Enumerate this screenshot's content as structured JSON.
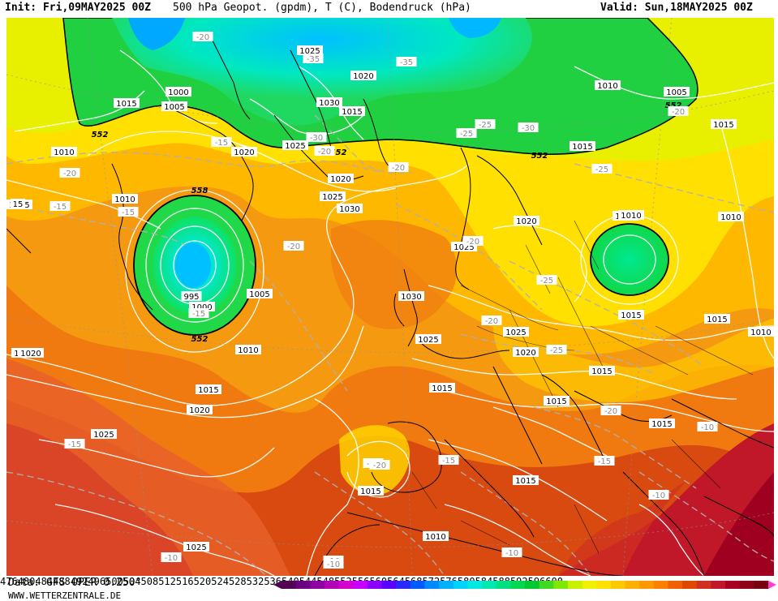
{
  "header": {
    "init": "Init: Fri,09MAY2025 00Z",
    "title": "500 hPa Geopot. (gpdm), T (C), Bodendruck (hPa)",
    "valid": "Valid: Sun,18MAY2025 00Z"
  },
  "footer": {
    "data_source": "Data: GFS OPER 0.250°",
    "website": "WWW.WETTERZENTRALE.DE"
  },
  "legend": {
    "ticks": [
      "476",
      "480",
      "484",
      "488",
      "492",
      "496",
      "500",
      "504",
      "508",
      "512",
      "516",
      "520",
      "524",
      "528",
      "532",
      "536",
      "540",
      "544",
      "548",
      "552",
      "556",
      "560",
      "564",
      "568",
      "572",
      "576",
      "580",
      "584",
      "588",
      "592",
      "596",
      "600"
    ],
    "colors": [
      "#520052",
      "#6a007f",
      "#8f00a0",
      "#b300b8",
      "#d400d0",
      "#c800ff",
      "#8a00ff",
      "#5a00ff",
      "#2a2aff",
      "#005aff",
      "#0088ff",
      "#00b0ff",
      "#00d2ff",
      "#00e8e0",
      "#00e8b0",
      "#00e080",
      "#00d850",
      "#00c830",
      "#40d820",
      "#80e800",
      "#c8f000",
      "#f0f000",
      "#ffe000",
      "#ffc800",
      "#ffb000",
      "#ff9800",
      "#ff8000",
      "#f06000",
      "#e04800",
      "#d03020",
      "#c01828",
      "#a80020",
      "#900018",
      "#780010"
    ]
  },
  "map": {
    "pressure_labels": [
      "1000",
      "1005",
      "1010",
      "1015",
      "1020",
      "1025",
      "1030",
      "995"
    ],
    "geopotential_labels": [
      "552",
      "558"
    ],
    "temperature_labels": [
      "-10",
      "-15",
      "-20",
      "-25",
      "-30",
      "-35"
    ],
    "placed_labels": [
      {
        "text": "1000"
      },
      {
        "text": "1005"
      },
      {
        "text": "1015"
      },
      {
        "text": "1010"
      },
      {
        "text": "1015"
      },
      {
        "text": "1025"
      },
      {
        "text": "1030"
      },
      {
        "text": "1020"
      },
      {
        "text": "1015"
      },
      {
        "text": "1025"
      },
      {
        "text": "1020"
      },
      {
        "text": "1025"
      },
      {
        "text": "1030"
      },
      {
        "text": "1020"
      },
      {
        "text": "1010"
      },
      {
        "text": "995"
      },
      {
        "text": "1000"
      },
      {
        "text": "1005"
      },
      {
        "text": "1010"
      },
      {
        "text": "1020"
      },
      {
        "text": "1015"
      },
      {
        "text": "1020"
      },
      {
        "text": "1025"
      },
      {
        "text": "1030"
      },
      {
        "text": "1025"
      },
      {
        "text": "1025"
      },
      {
        "text": "1020"
      },
      {
        "text": "1020"
      },
      {
        "text": "1015"
      },
      {
        "text": "1015"
      },
      {
        "text": "1015"
      },
      {
        "text": "1015"
      },
      {
        "text": "1010"
      },
      {
        "text": "1010"
      },
      {
        "text": "1005"
      },
      {
        "text": "1015"
      },
      {
        "text": "1010"
      },
      {
        "text": "1015"
      },
      {
        "text": "1015"
      },
      {
        "text": "1010"
      },
      {
        "text": "1015"
      },
      {
        "text": "1015"
      },
      {
        "text": "1025"
      },
      {
        "text": "1025"
      },
      {
        "text": "1010"
      },
      {
        "text": "1015"
      },
      {
        "text": "552"
      },
      {
        "text": "552"
      },
      {
        "text": "558"
      },
      {
        "text": "552"
      },
      {
        "text": "552"
      },
      {
        "text": "552"
      },
      {
        "text": "-20"
      },
      {
        "text": "-35"
      },
      {
        "text": "-35"
      },
      {
        "text": "-30"
      },
      {
        "text": "-25"
      },
      {
        "text": "-30"
      },
      {
        "text": "-20"
      },
      {
        "text": "-15"
      },
      {
        "text": "-20"
      },
      {
        "text": "-20"
      },
      {
        "text": "-15"
      },
      {
        "text": "-15"
      },
      {
        "text": "-20"
      },
      {
        "text": "-25"
      },
      {
        "text": "-20"
      },
      {
        "text": "-25"
      },
      {
        "text": "-20"
      },
      {
        "text": "-25"
      },
      {
        "text": "-15"
      },
      {
        "text": "-20"
      },
      {
        "text": "-10"
      },
      {
        "text": "-10"
      },
      {
        "text": "-10"
      },
      {
        "text": "-10"
      },
      {
        "text": "-10"
      },
      {
        "text": "-15"
      },
      {
        "text": "-20"
      },
      {
        "text": "-15"
      },
      {
        "text": "-20"
      },
      {
        "text": "-25"
      },
      {
        "text": "1010"
      },
      {
        "text": "15"
      },
      {
        "text": "-15"
      },
      {
        "text": "-10"
      },
      {
        "text": "-20"
      },
      {
        "text": "1020"
      }
    ]
  }
}
